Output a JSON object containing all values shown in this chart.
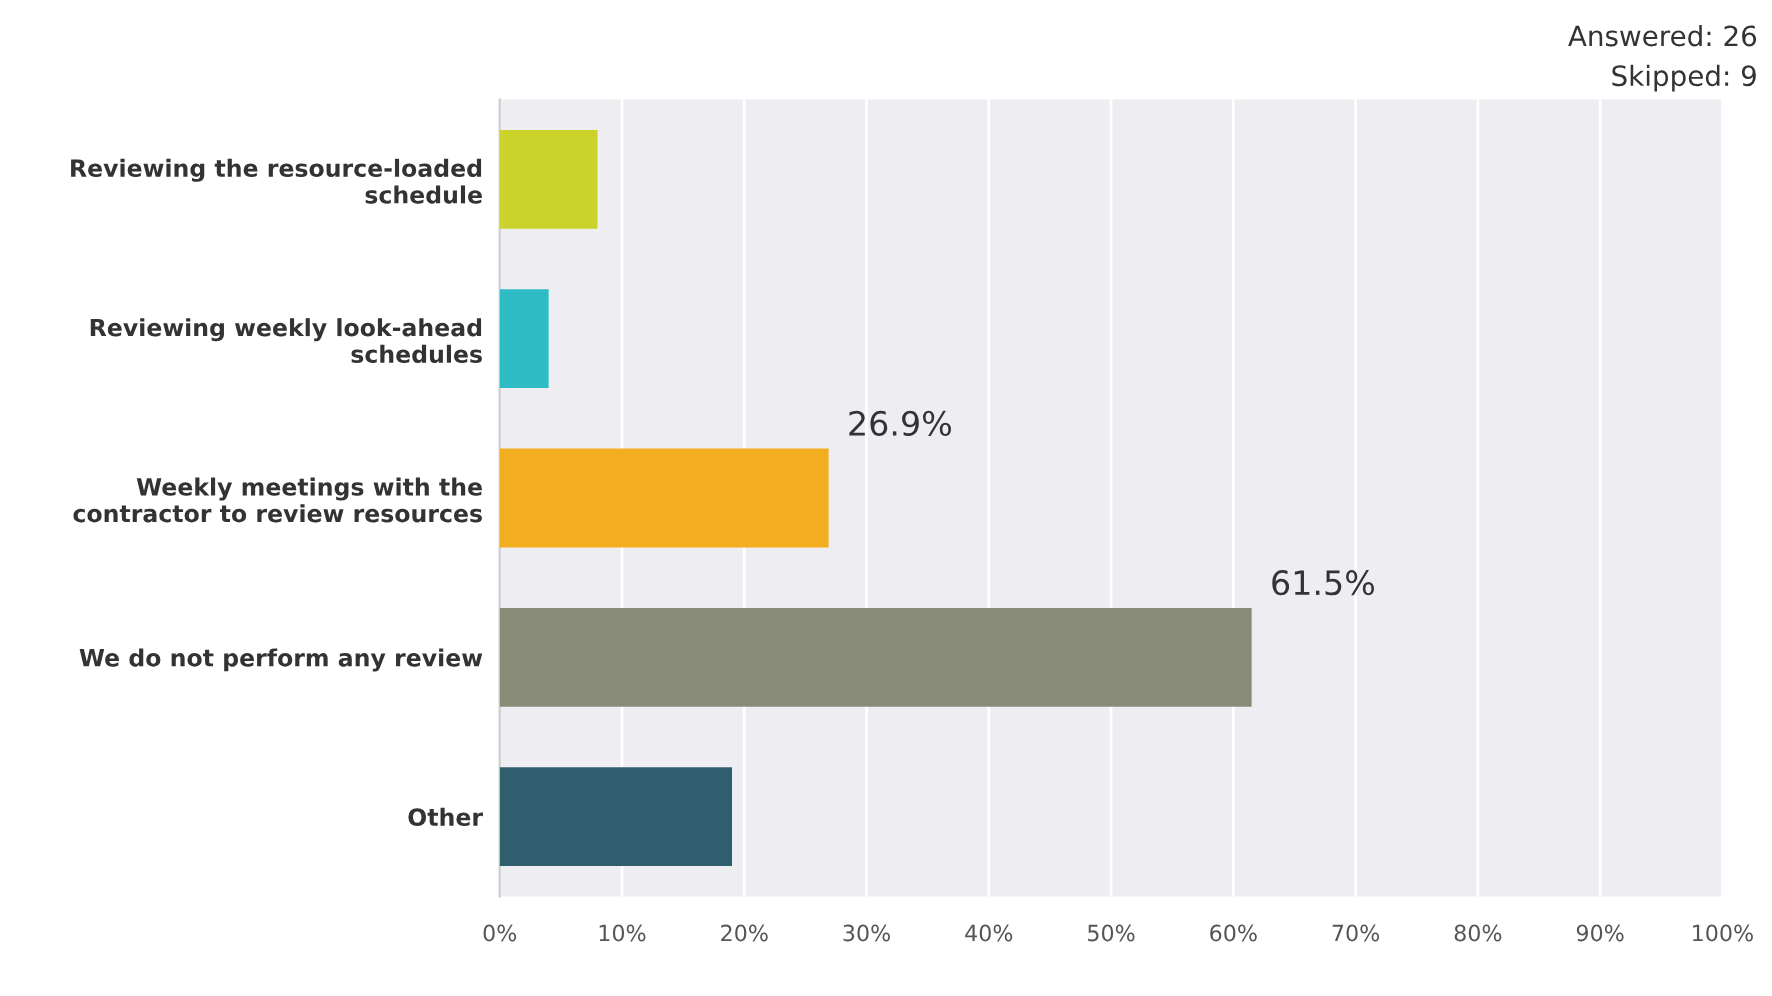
{
  "chart_data": {
    "type": "bar",
    "orientation": "horizontal",
    "categories": [
      "Reviewing the resource-loaded\nschedule",
      "Reviewing weekly look-ahead\nschedules",
      "Weekly meetings with the\ncontractor to review resources",
      "We do not perform any review",
      "Other"
    ],
    "values": [
      8,
      4,
      26.9,
      61.5,
      19
    ],
    "colors": [
      "#cbd32b",
      "#2ebcc4",
      "#f2ad21",
      "#878b77",
      "#2f5f6e"
    ],
    "value_labels": [
      null,
      null,
      "26.9%",
      "61.5%",
      null
    ],
    "xlim": [
      0,
      100
    ],
    "xticks": [
      {
        "value": 0,
        "label": "0%"
      },
      {
        "value": 10,
        "label": "10%"
      },
      {
        "value": 20,
        "label": "20%"
      },
      {
        "value": 30,
        "label": "30%"
      },
      {
        "value": 40,
        "label": "40%"
      },
      {
        "value": 50,
        "label": "50%"
      },
      {
        "value": 60,
        "label": "60%"
      },
      {
        "value": 70,
        "label": "70%"
      },
      {
        "value": 80,
        "label": "80%"
      },
      {
        "value": 90,
        "label": "90%"
      },
      {
        "value": 100,
        "label": "100%"
      }
    ],
    "grid": "x",
    "annotations": [
      "Answered: 26",
      "Skipped: 9"
    ]
  }
}
